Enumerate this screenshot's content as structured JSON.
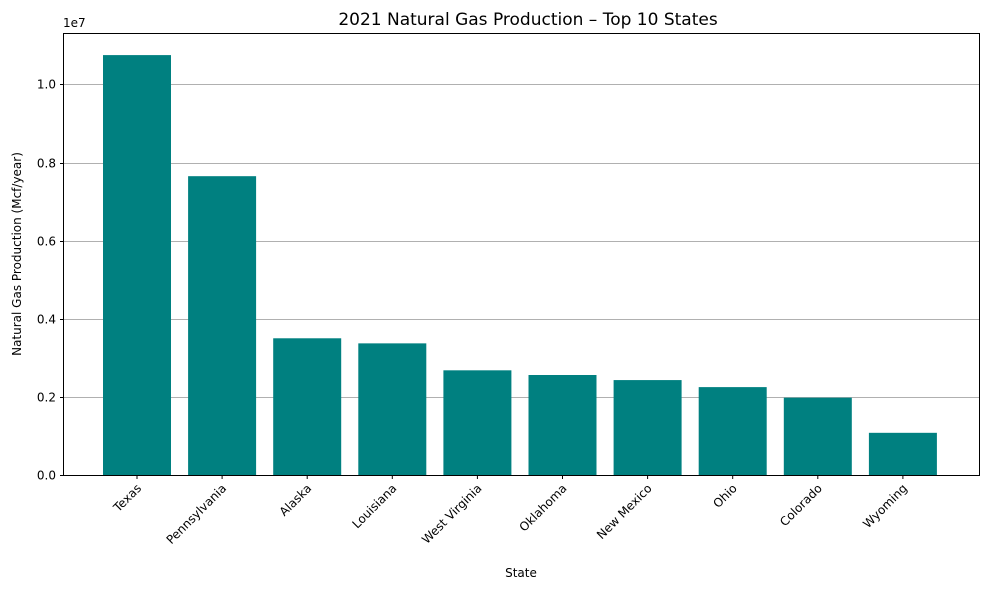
{
  "chart_data": {
    "type": "bar",
    "title": "2021 Natural Gas Production – Top 10 States",
    "xlabel": "State",
    "ylabel": "Natural Gas Production (Mcf/year)",
    "y_offset_label": "1e7",
    "categories": [
      "Texas",
      "Pennsylvania",
      "Alaska",
      "Louisiana",
      "West Virginia",
      "Oklahoma",
      "New Mexico",
      "Ohio",
      "Colorado",
      "Wyoming"
    ],
    "values": [
      10750000,
      7650000,
      3500000,
      3370000,
      2680000,
      2560000,
      2430000,
      2250000,
      1980000,
      1080000
    ],
    "ylim": [
      0,
      11290000
    ],
    "y_ticks": [
      0,
      2000000,
      4000000,
      6000000,
      8000000,
      10000000
    ],
    "y_tick_labels": [
      "0.0",
      "0.2",
      "0.4",
      "0.6",
      "0.8",
      "1.0"
    ],
    "bar_color": "#008080",
    "grid": "y-major",
    "grid_color": "#b0b0b0",
    "legend": "none"
  }
}
